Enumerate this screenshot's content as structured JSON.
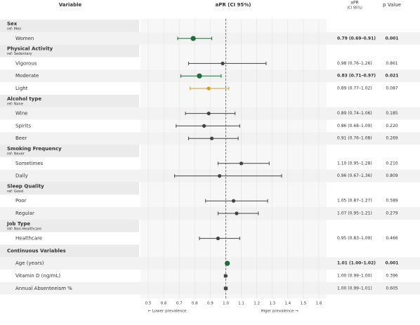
{
  "chart_data": {
    "type": "forest",
    "headers": {
      "variable": "Variable",
      "plot": "aPR (CI 95%)",
      "estimate_top": "aPR",
      "estimate_bottom": "(CI 95%)",
      "p": "p Value"
    },
    "xlim": [
      0.45,
      1.65
    ],
    "xticks": [
      0.5,
      0.6,
      0.7,
      0.8,
      0.9,
      {
        "value": 1,
        "label": "1.0"
      },
      1.1,
      1.2,
      1.3,
      1.4,
      1.5,
      1.6
    ],
    "reference": 1,
    "reference_color": "#c0392b",
    "footer_left": "← Lower prevalence",
    "footer_right": "Higer prevalence →",
    "groups": [
      {
        "name": "Sex",
        "ref": "ref: Men",
        "rows": [
          {
            "label": "Women",
            "estimate": 0.79,
            "lower": 0.69,
            "upper": 0.91,
            "ci_label": "0.79 (0.69–0.91)",
            "p": "0.001",
            "color": "#1e6b3c",
            "emphasis": true
          }
        ]
      },
      {
        "name": "Physical Activity",
        "ref": "ref: Sedentary",
        "rows": [
          {
            "label": "Vigorous",
            "estimate": 0.98,
            "lower": 0.76,
            "upper": 1.26,
            "ci_label": "0.98 (0.76–1.26)",
            "p": "0.861",
            "color": "#444444",
            "emphasis": false
          },
          {
            "label": "Moderate",
            "estimate": 0.83,
            "lower": 0.71,
            "upper": 0.97,
            "ci_label": "0.83 (0.71–0.97)",
            "p": "0.021",
            "color": "#1e6b3c",
            "emphasis": true
          },
          {
            "label": "Light",
            "estimate": 0.89,
            "lower": 0.77,
            "upper": 1.02,
            "ci_label": "0.89 (0.77–1.02)",
            "p": "0.087",
            "color": "#d4a017",
            "emphasis": false
          }
        ]
      },
      {
        "name": "Alcohol type",
        "ref": "ref: None",
        "rows": [
          {
            "label": "Wine",
            "estimate": 0.89,
            "lower": 0.74,
            "upper": 1.06,
            "ci_label": "0.89 (0.74–1.06)",
            "p": "0.185",
            "color": "#444444",
            "emphasis": false
          },
          {
            "label": "Spirits",
            "estimate": 0.86,
            "lower": 0.68,
            "upper": 1.09,
            "ci_label": "0.86 (0.68–1.09)",
            "p": "0.220",
            "color": "#444444",
            "emphasis": false
          },
          {
            "label": "Beer",
            "estimate": 0.91,
            "lower": 0.76,
            "upper": 1.08,
            "ci_label": "0.91 (0.76–1.08)",
            "p": "0.269",
            "color": "#444444",
            "emphasis": false
          }
        ]
      },
      {
        "name": "Smoking Frequency",
        "ref": "ref: Never",
        "rows": [
          {
            "label": "Sometimes",
            "estimate": 1.1,
            "lower": 0.95,
            "upper": 1.28,
            "ci_label": "1.10 (0.95–1.28)",
            "p": "0.210",
            "color": "#444444",
            "emphasis": false
          },
          {
            "label": "Daily",
            "estimate": 0.96,
            "lower": 0.67,
            "upper": 1.36,
            "ci_label": "0.96 (0.67–1.36)",
            "p": "0.809",
            "color": "#444444",
            "emphasis": false
          }
        ]
      },
      {
        "name": "Sleep Quality",
        "ref": "ref: Good",
        "rows": [
          {
            "label": "Poor",
            "estimate": 1.05,
            "lower": 0.87,
            "upper": 1.27,
            "ci_label": "1.05 (0.87–1.27)",
            "p": "0.589",
            "color": "#444444",
            "emphasis": false
          },
          {
            "label": "Regular",
            "estimate": 1.07,
            "lower": 0.95,
            "upper": 1.21,
            "ci_label": "1.07 (0.95–1.21)",
            "p": "0.279",
            "color": "#444444",
            "emphasis": false
          }
        ]
      },
      {
        "name": "Job Type",
        "ref": "ref: Non-Healthcare",
        "rows": [
          {
            "label": "Healthcare",
            "estimate": 0.95,
            "lower": 0.83,
            "upper": 1.09,
            "ci_label": "0.95 (0.83–1.09)",
            "p": "0.466",
            "color": "#444444",
            "emphasis": false
          }
        ]
      },
      {
        "name": "Continuous Variables",
        "rows": [
          {
            "label": "Age (years)",
            "estimate": 1.01,
            "lower": 1.0,
            "upper": 1.02,
            "ci_label": "1.01 (1.00–1.02)",
            "p": "0.001",
            "color": "#1e6b3c",
            "emphasis": true
          },
          {
            "label": "Vitamin D (ng/mL)",
            "estimate": 1.0,
            "lower": 0.99,
            "upper": 1.0,
            "ci_label": "1.00 (0.99–1.00)",
            "p": "0.396",
            "color": "#444444",
            "emphasis": false
          },
          {
            "label": "Annual Absenteeism %",
            "estimate": 1.0,
            "lower": 0.99,
            "upper": 1.01,
            "ci_label": "1.00 (0.99–1.01)",
            "p": "0.605",
            "color": "#444444",
            "emphasis": false
          }
        ]
      }
    ]
  }
}
